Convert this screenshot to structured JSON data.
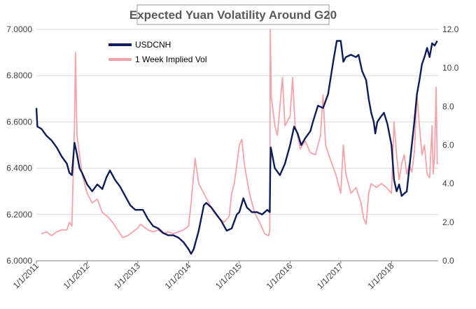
{
  "chart_data": {
    "type": "line",
    "title": "Expected Yuan Volatility Around G20",
    "legend_position": "top-left",
    "grid": true,
    "x_ticks": [
      "1/1/2011",
      "1/1/2012",
      "1/1/2013",
      "1/1/2014",
      "1/1/2015",
      "1/1/2016",
      "1/1/2017",
      "1/1/2018"
    ],
    "y_left": {
      "ticks": [
        "6.0000",
        "6.2000",
        "6.4000",
        "6.6000",
        "6.8000",
        "7.0000"
      ],
      "ylim": [
        6.0,
        7.0
      ]
    },
    "y_right": {
      "ticks": [
        "0.0",
        "2.0",
        "4.0",
        "6.0",
        "8.0",
        "10.0",
        "12.0"
      ],
      "ylim": [
        0.0,
        12.0
      ]
    },
    "xlim": [
      2011.0,
      2018.92
    ],
    "series": [
      {
        "name": "USDCNH",
        "axis": "left",
        "color": "#0d1d5a",
        "points": [
          [
            2011.0,
            6.66
          ],
          [
            2011.02,
            6.58
          ],
          [
            2011.1,
            6.57
          ],
          [
            2011.2,
            6.54
          ],
          [
            2011.3,
            6.52
          ],
          [
            2011.4,
            6.49
          ],
          [
            2011.5,
            6.45
          ],
          [
            2011.6,
            6.42
          ],
          [
            2011.65,
            6.38
          ],
          [
            2011.7,
            6.37
          ],
          [
            2011.75,
            6.51
          ],
          [
            2011.8,
            6.46
          ],
          [
            2011.85,
            6.4
          ],
          [
            2011.9,
            6.38
          ],
          [
            2012.0,
            6.33
          ],
          [
            2012.1,
            6.3
          ],
          [
            2012.2,
            6.33
          ],
          [
            2012.3,
            6.31
          ],
          [
            2012.38,
            6.36
          ],
          [
            2012.45,
            6.39
          ],
          [
            2012.55,
            6.35
          ],
          [
            2012.65,
            6.32
          ],
          [
            2012.75,
            6.28
          ],
          [
            2012.85,
            6.24
          ],
          [
            2012.95,
            6.22
          ],
          [
            2013.0,
            6.22
          ],
          [
            2013.1,
            6.22
          ],
          [
            2013.2,
            6.18
          ],
          [
            2013.3,
            6.15
          ],
          [
            2013.4,
            6.14
          ],
          [
            2013.5,
            6.12
          ],
          [
            2013.6,
            6.11
          ],
          [
            2013.7,
            6.11
          ],
          [
            2013.8,
            6.1
          ],
          [
            2013.9,
            6.08
          ],
          [
            2014.0,
            6.05
          ],
          [
            2014.05,
            6.03
          ],
          [
            2014.1,
            6.05
          ],
          [
            2014.2,
            6.13
          ],
          [
            2014.3,
            6.24
          ],
          [
            2014.35,
            6.25
          ],
          [
            2014.45,
            6.23
          ],
          [
            2014.55,
            6.2
          ],
          [
            2014.65,
            6.17
          ],
          [
            2014.75,
            6.13
          ],
          [
            2014.85,
            6.14
          ],
          [
            2014.95,
            6.2
          ],
          [
            2015.0,
            6.21
          ],
          [
            2015.08,
            6.27
          ],
          [
            2015.15,
            6.23
          ],
          [
            2015.25,
            6.21
          ],
          [
            2015.35,
            6.21
          ],
          [
            2015.45,
            6.2
          ],
          [
            2015.55,
            6.22
          ],
          [
            2015.6,
            6.21
          ],
          [
            2015.61,
            6.4
          ],
          [
            2015.62,
            6.49
          ],
          [
            2015.7,
            6.4
          ],
          [
            2015.8,
            6.37
          ],
          [
            2015.9,
            6.42
          ],
          [
            2016.0,
            6.5
          ],
          [
            2016.08,
            6.58
          ],
          [
            2016.15,
            6.55
          ],
          [
            2016.22,
            6.5
          ],
          [
            2016.3,
            6.53
          ],
          [
            2016.4,
            6.56
          ],
          [
            2016.45,
            6.6
          ],
          [
            2016.55,
            6.67
          ],
          [
            2016.65,
            6.66
          ],
          [
            2016.75,
            6.72
          ],
          [
            2016.85,
            6.86
          ],
          [
            2016.92,
            6.95
          ],
          [
            2017.0,
            6.95
          ],
          [
            2017.05,
            6.86
          ],
          [
            2017.1,
            6.88
          ],
          [
            2017.2,
            6.89
          ],
          [
            2017.3,
            6.88
          ],
          [
            2017.35,
            6.89
          ],
          [
            2017.42,
            6.82
          ],
          [
            2017.5,
            6.78
          ],
          [
            2017.55,
            6.7
          ],
          [
            2017.6,
            6.64
          ],
          [
            2017.65,
            6.6
          ],
          [
            2017.68,
            6.55
          ],
          [
            2017.72,
            6.6
          ],
          [
            2017.78,
            6.62
          ],
          [
            2017.85,
            6.64
          ],
          [
            2017.92,
            6.59
          ],
          [
            2018.0,
            6.5
          ],
          [
            2018.05,
            6.35
          ],
          [
            2018.1,
            6.3
          ],
          [
            2018.15,
            6.33
          ],
          [
            2018.2,
            6.28
          ],
          [
            2018.25,
            6.29
          ],
          [
            2018.3,
            6.3
          ],
          [
            2018.35,
            6.4
          ],
          [
            2018.4,
            6.5
          ],
          [
            2018.45,
            6.6
          ],
          [
            2018.5,
            6.72
          ],
          [
            2018.55,
            6.78
          ],
          [
            2018.6,
            6.85
          ],
          [
            2018.65,
            6.88
          ],
          [
            2018.7,
            6.92
          ],
          [
            2018.75,
            6.88
          ],
          [
            2018.8,
            6.94
          ],
          [
            2018.85,
            6.93
          ],
          [
            2018.9,
            6.95
          ]
        ]
      },
      {
        "name": "1 Week Implied Vol",
        "axis": "right",
        "color": "#f4a3a8",
        "points": [
          [
            2011.1,
            1.4
          ],
          [
            2011.2,
            1.5
          ],
          [
            2011.3,
            1.3
          ],
          [
            2011.4,
            1.5
          ],
          [
            2011.5,
            1.6
          ],
          [
            2011.6,
            1.6
          ],
          [
            2011.65,
            2.0
          ],
          [
            2011.7,
            1.8
          ],
          [
            2011.75,
            7.0
          ],
          [
            2011.77,
            10.8
          ],
          [
            2011.8,
            6.5
          ],
          [
            2011.85,
            5.5
          ],
          [
            2011.9,
            4.5
          ],
          [
            2012.0,
            3.5
          ],
          [
            2012.1,
            3.0
          ],
          [
            2012.2,
            3.2
          ],
          [
            2012.3,
            2.5
          ],
          [
            2012.4,
            2.3
          ],
          [
            2012.5,
            2.0
          ],
          [
            2012.6,
            1.6
          ],
          [
            2012.7,
            1.2
          ],
          [
            2012.8,
            1.3
          ],
          [
            2012.9,
            1.5
          ],
          [
            2013.0,
            1.7
          ],
          [
            2013.05,
            1.9
          ],
          [
            2013.1,
            1.8
          ],
          [
            2013.2,
            1.6
          ],
          [
            2013.3,
            1.5
          ],
          [
            2013.4,
            1.6
          ],
          [
            2013.5,
            1.4
          ],
          [
            2013.6,
            1.5
          ],
          [
            2013.7,
            1.4
          ],
          [
            2013.8,
            1.5
          ],
          [
            2013.9,
            1.6
          ],
          [
            2014.0,
            1.8
          ],
          [
            2014.05,
            3.0
          ],
          [
            2014.1,
            4.5
          ],
          [
            2014.13,
            5.3
          ],
          [
            2014.2,
            4.0
          ],
          [
            2014.3,
            3.5
          ],
          [
            2014.4,
            3.0
          ],
          [
            2014.5,
            2.5
          ],
          [
            2014.6,
            2.2
          ],
          [
            2014.7,
            2.0
          ],
          [
            2014.8,
            2.3
          ],
          [
            2014.85,
            3.5
          ],
          [
            2014.9,
            4.0
          ],
          [
            2014.95,
            5.0
          ],
          [
            2015.0,
            6.0
          ],
          [
            2015.05,
            6.3
          ],
          [
            2015.1,
            5.0
          ],
          [
            2015.2,
            3.5
          ],
          [
            2015.3,
            2.5
          ],
          [
            2015.4,
            2.0
          ],
          [
            2015.5,
            1.4
          ],
          [
            2015.58,
            1.3
          ],
          [
            2015.6,
            1.6
          ],
          [
            2015.61,
            12.0
          ],
          [
            2015.63,
            8.5
          ],
          [
            2015.7,
            7.0
          ],
          [
            2015.75,
            6.5
          ],
          [
            2015.8,
            8.0
          ],
          [
            2015.85,
            9.5
          ],
          [
            2015.9,
            7.0
          ],
          [
            2016.0,
            7.5
          ],
          [
            2016.05,
            9.5
          ],
          [
            2016.1,
            7.0
          ],
          [
            2016.15,
            6.5
          ],
          [
            2016.2,
            5.8
          ],
          [
            2016.3,
            6.2
          ],
          [
            2016.4,
            5.6
          ],
          [
            2016.5,
            5.5
          ],
          [
            2016.6,
            6.5
          ],
          [
            2016.65,
            8.6
          ],
          [
            2016.7,
            6.0
          ],
          [
            2016.8,
            5.2
          ],
          [
            2016.9,
            4.5
          ],
          [
            2017.0,
            3.5
          ],
          [
            2017.05,
            6.0
          ],
          [
            2017.1,
            4.5
          ],
          [
            2017.2,
            3.5
          ],
          [
            2017.3,
            3.8
          ],
          [
            2017.4,
            3.0
          ],
          [
            2017.45,
            2.2
          ],
          [
            2017.5,
            1.9
          ],
          [
            2017.55,
            3.5
          ],
          [
            2017.6,
            4.0
          ],
          [
            2017.7,
            3.8
          ],
          [
            2017.8,
            4.0
          ],
          [
            2017.9,
            3.8
          ],
          [
            2018.0,
            3.5
          ],
          [
            2018.05,
            7.2
          ],
          [
            2018.1,
            5.5
          ],
          [
            2018.15,
            4.2
          ],
          [
            2018.2,
            5.0
          ],
          [
            2018.25,
            5.5
          ],
          [
            2018.3,
            4.5
          ],
          [
            2018.35,
            5.0
          ],
          [
            2018.4,
            4.6
          ],
          [
            2018.45,
            5.6
          ],
          [
            2018.5,
            8.6
          ],
          [
            2018.55,
            7.0
          ],
          [
            2018.6,
            5.5
          ],
          [
            2018.65,
            6.0
          ],
          [
            2018.7,
            4.5
          ],
          [
            2018.75,
            4.3
          ],
          [
            2018.8,
            7.0
          ],
          [
            2018.82,
            4.5
          ],
          [
            2018.85,
            5.5
          ],
          [
            2018.88,
            9.0
          ],
          [
            2018.9,
            5.0
          ]
        ]
      }
    ]
  }
}
